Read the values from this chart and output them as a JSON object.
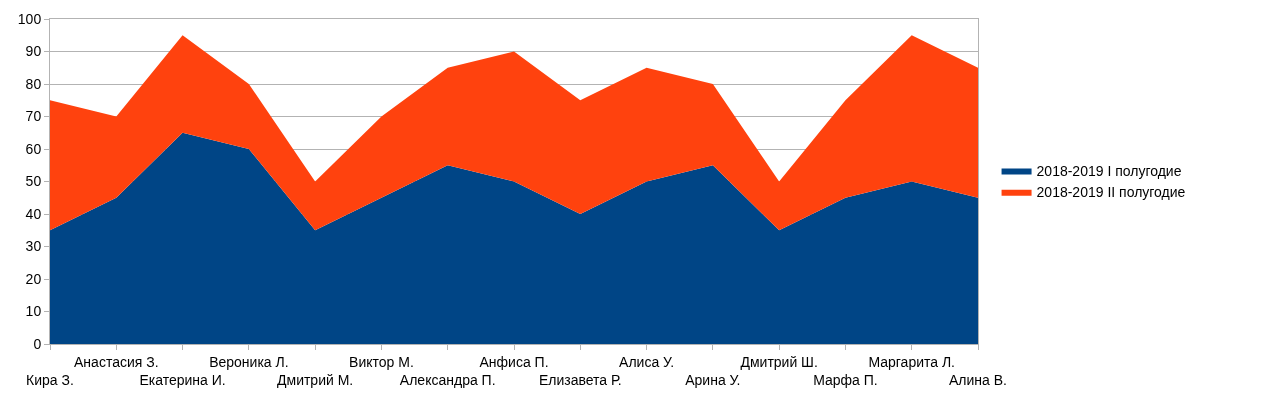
{
  "chart_data": {
    "type": "area",
    "stacked": true,
    "categories": [
      "Кира З.",
      "Анастасия З.",
      "Екатерина И.",
      "Вероника Л.",
      "Дмитрий М.",
      "Виктор М.",
      "Александра П.",
      "Анфиса П.",
      "Елизавета Р.",
      "Алиса У.",
      "Арина У.",
      "Дмитрий Ш.",
      "Марфа П.",
      "Маргарита Л.",
      "Алина В."
    ],
    "series": [
      {
        "name": "2018-2019 I полугодие",
        "color": "#004586",
        "values": [
          35,
          45,
          65,
          60,
          35,
          45,
          55,
          50,
          40,
          50,
          55,
          35,
          45,
          50,
          45
        ]
      },
      {
        "name": "2018-2019 II полугодие",
        "color": "#ff420e",
        "values": [
          40,
          25,
          30,
          20,
          15,
          25,
          30,
          40,
          35,
          35,
          25,
          15,
          30,
          45,
          40
        ]
      }
    ],
    "ylim": [
      0,
      100
    ],
    "yticks": [
      0,
      10,
      20,
      30,
      40,
      50,
      60,
      70,
      80,
      90,
      100
    ],
    "grid": "y",
    "legend": "right"
  }
}
